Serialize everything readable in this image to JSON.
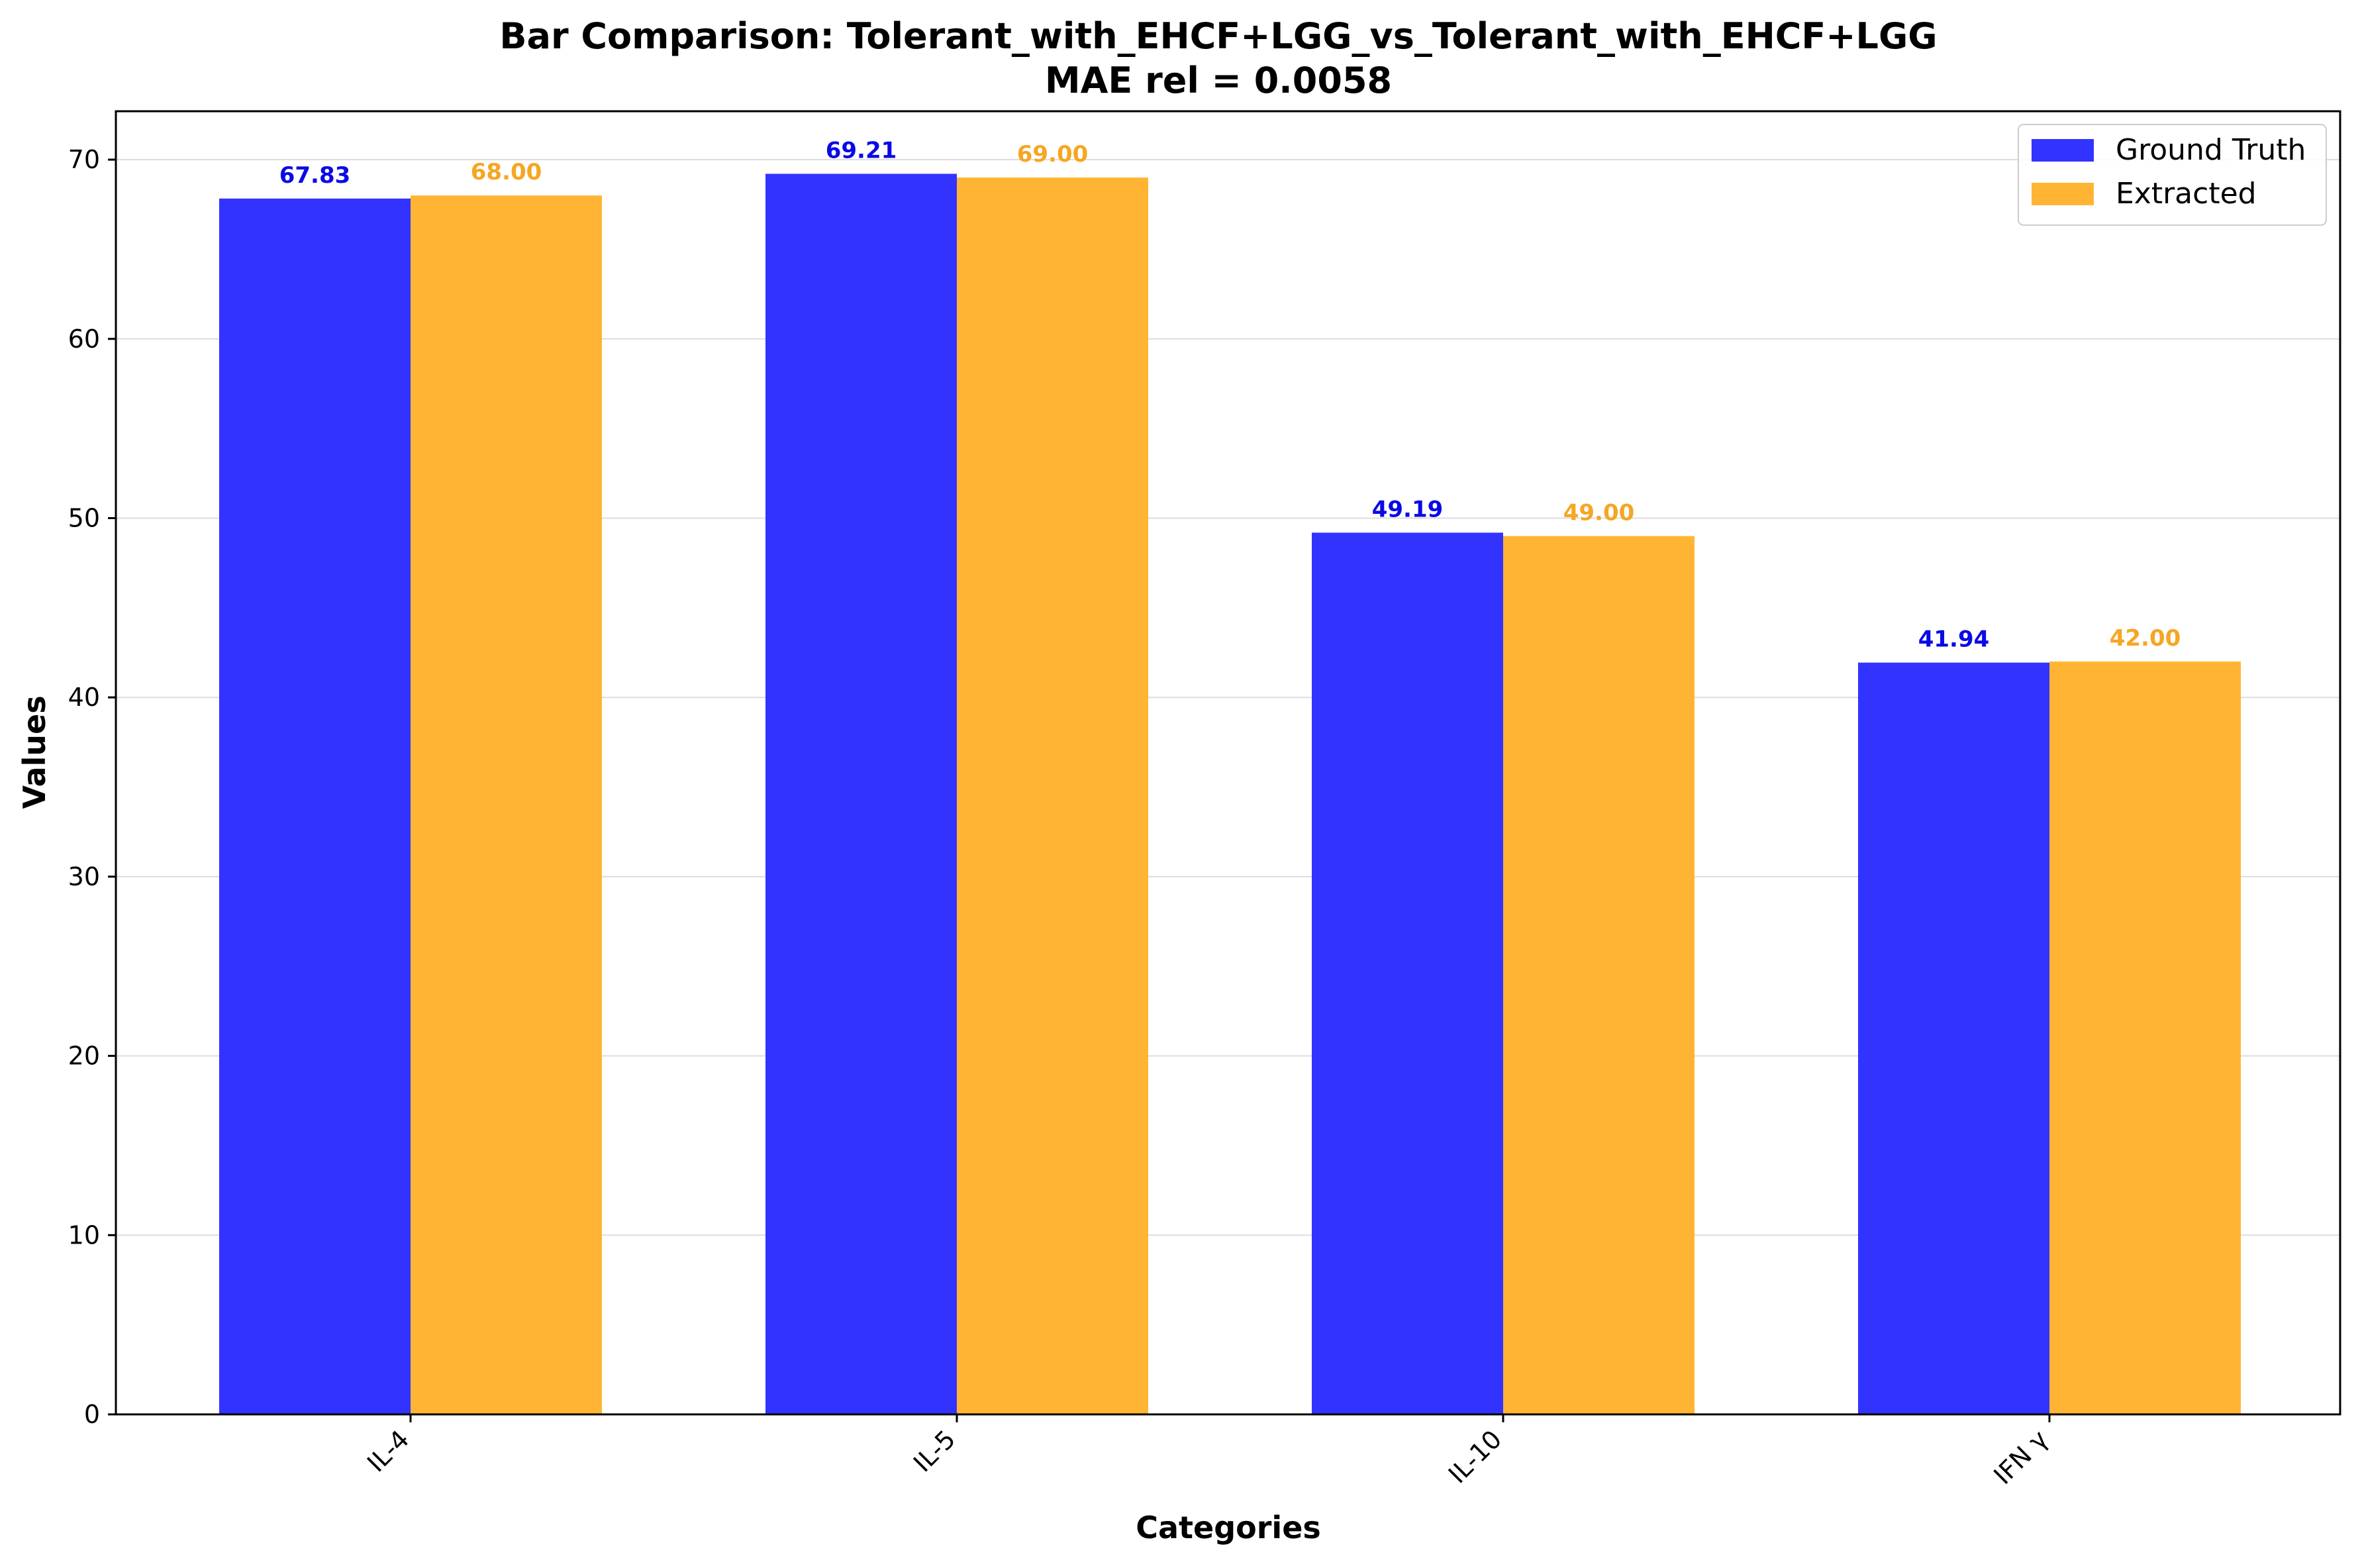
{
  "chart_data": {
    "type": "bar",
    "title": "Bar Comparison: Tolerant_with_EHCF+LGG_vs_Tolerant_with_EHCF+LGG",
    "subtitle": "MAE rel = 0.0058",
    "xlabel": "Categories",
    "ylabel": "Values",
    "categories": [
      "IL-4",
      "IL-5",
      "IL-10",
      "IFN γ"
    ],
    "ylim": [
      0,
      72.7
    ],
    "yticks": [
      0,
      10,
      20,
      30,
      40,
      50,
      60,
      70
    ],
    "grid": "horizontal",
    "legend_position": "top-right",
    "series": [
      {
        "name": "Ground Truth",
        "color": "#3333ff",
        "label_color": "#0a0ae6",
        "values": [
          67.83,
          69.21,
          49.19,
          41.94
        ],
        "labels": [
          "67.83",
          "69.21",
          "49.19",
          "41.94"
        ]
      },
      {
        "name": "Extracted",
        "color": "#ffb533",
        "label_color": "#f5a623",
        "values": [
          68.0,
          69.0,
          49.0,
          42.0
        ],
        "labels": [
          "68.00",
          "69.00",
          "49.00",
          "42.00"
        ]
      }
    ]
  }
}
